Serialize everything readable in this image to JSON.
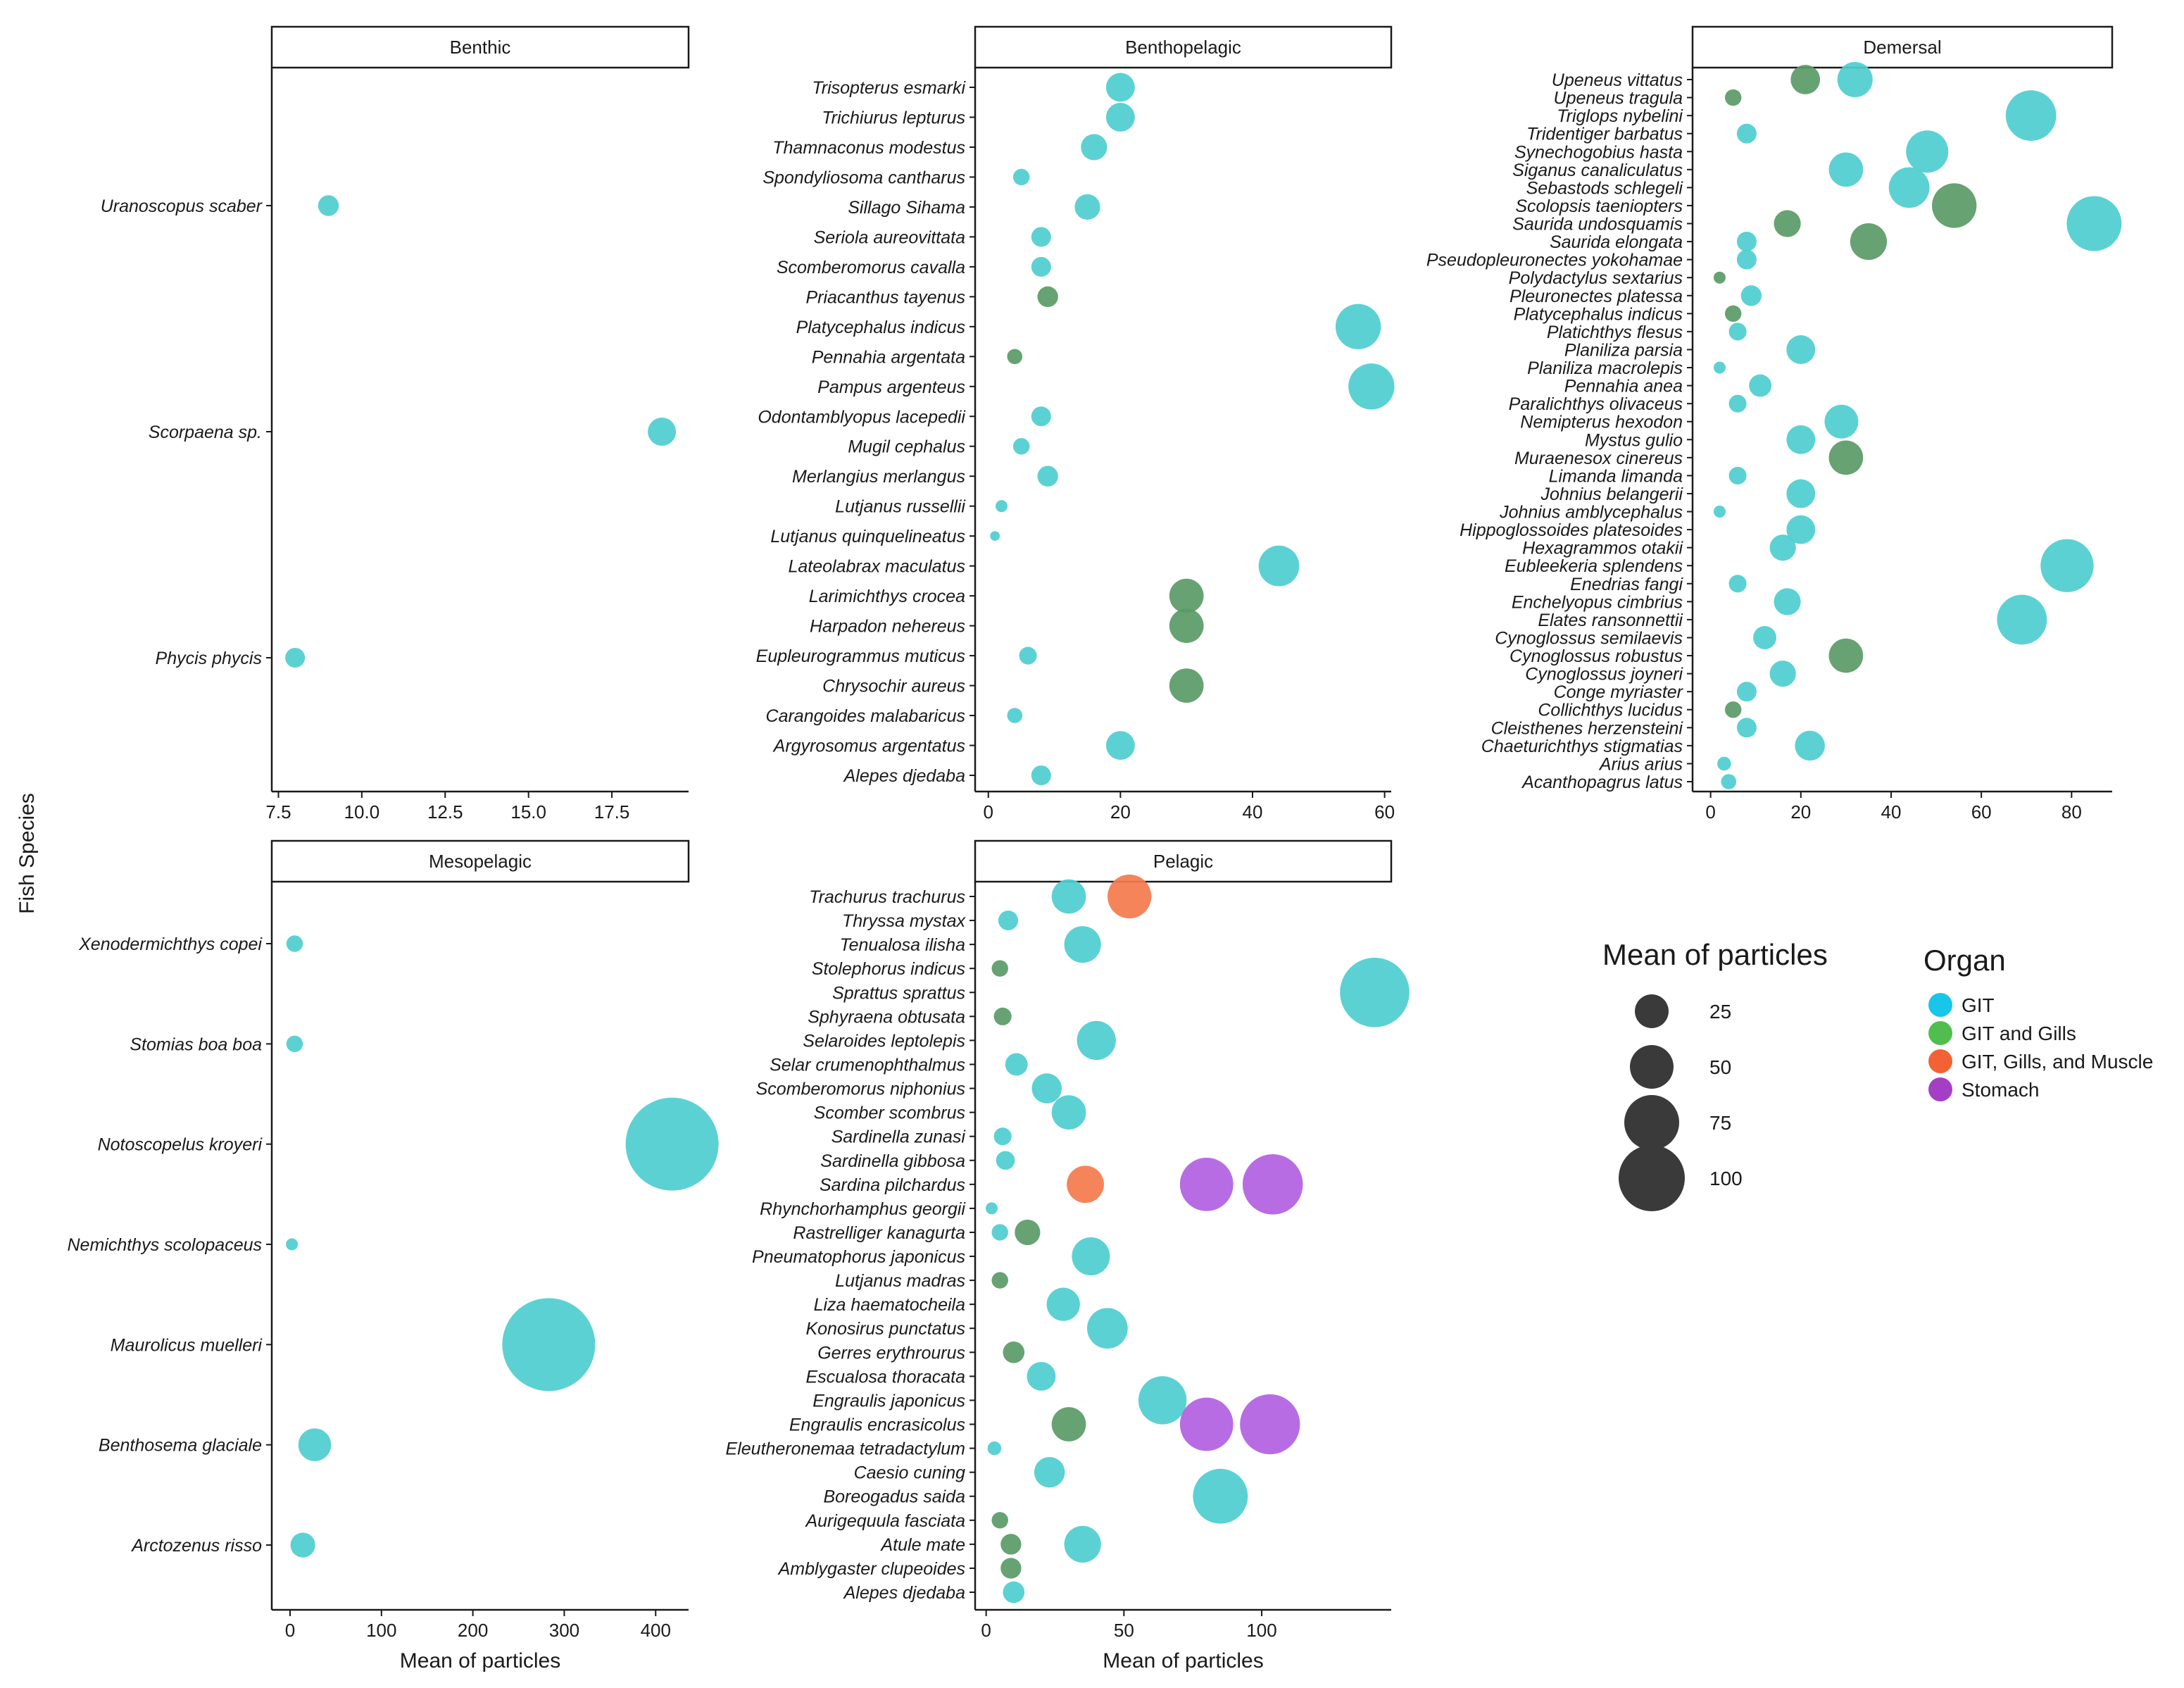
{
  "chart_data": {
    "type": "scatter",
    "y_axis_title": "Fish Species",
    "x_axis_title": "Mean of particles",
    "colors": {
      "GIT": "#4ECDCF",
      "GIT and Gills": "#5A9A66",
      "GIT, Gills, and Muscle": "#F47A4C",
      "Stomach": "#B15FE2"
    },
    "legend_colors": {
      "GIT": "#17C6E8",
      "GIT and Gills": "#4FBE4E",
      "GIT, Gills, and Muscle": "#F26234",
      "Stomach": "#A43FC5"
    },
    "size_legend": {
      "title": "Mean of particles",
      "values": [
        25,
        50,
        75,
        100
      ]
    },
    "color_legend": {
      "title": "Organ",
      "entries": [
        "GIT",
        "GIT and Gills",
        "GIT, Gills, and Muscle",
        "Stomach"
      ]
    },
    "facets": [
      {
        "title": "Benthic",
        "xlim": [
          7.3,
          19.8
        ],
        "xticks": [
          7.5,
          10.0,
          12.5,
          15.0,
          17.5
        ],
        "xtick_labels": [
          "7.5",
          "10.0",
          "12.5",
          "15.0",
          "17.5"
        ],
        "show_xlabel": false,
        "species": [
          "Uranoscopus scaber",
          "Scorpaena sp.",
          "Phycis phycis"
        ],
        "points": [
          {
            "species": "Uranoscopus scaber",
            "x": 9,
            "organ": "GIT"
          },
          {
            "species": "Scorpaena sp.",
            "x": 19,
            "organ": "GIT"
          },
          {
            "species": "Phycis phycis",
            "x": 8,
            "organ": "GIT"
          }
        ]
      },
      {
        "title": "Benthopelagic",
        "xlim": [
          -2,
          61
        ],
        "xticks": [
          0,
          20,
          40,
          60
        ],
        "xtick_labels": [
          "0",
          "20",
          "40",
          "60"
        ],
        "show_xlabel": false,
        "species": [
          "Trisopterus esmarki",
          "Trichiurus lepturus",
          "Thamnaconus modestus",
          "Spondyliosoma cantharus",
          "Sillago Sihama",
          "Seriola aureovittata",
          "Scomberomorus cavalla",
          "Priacanthus tayenus",
          "Platycephalus indicus",
          "Pennahia argentata",
          "Pampus argenteus",
          "Odontamblyopus lacepedii",
          "Mugil cephalus",
          "Merlangius merlangus",
          "Lutjanus russellii",
          "Lutjanus quinquelineatus",
          "Lateolabrax maculatus",
          "Larimichthys crocea",
          "Harpadon nehereus",
          "Eupleurogrammus muticus",
          "Chrysochir aureus",
          "Carangoides malabaricus",
          "Argyrosomus argentatus",
          "Alepes djedaba"
        ],
        "points": [
          {
            "species": "Trisopterus esmarki",
            "x": 20,
            "organ": "GIT"
          },
          {
            "species": "Trichiurus lepturus",
            "x": 20,
            "organ": "GIT"
          },
          {
            "species": "Thamnaconus modestus",
            "x": 16,
            "organ": "GIT"
          },
          {
            "species": "Spondyliosoma cantharus",
            "x": 5,
            "organ": "GIT"
          },
          {
            "species": "Sillago Sihama",
            "x": 15,
            "organ": "GIT"
          },
          {
            "species": "Seriola aureovittata",
            "x": 8,
            "organ": "GIT"
          },
          {
            "species": "Scomberomorus cavalla",
            "x": 8,
            "organ": "GIT"
          },
          {
            "species": "Priacanthus tayenus",
            "x": 9,
            "organ": "GIT and Gills"
          },
          {
            "species": "Platycephalus indicus",
            "x": 56,
            "organ": "GIT"
          },
          {
            "species": "Pennahia argentata",
            "x": 4,
            "organ": "GIT and Gills"
          },
          {
            "species": "Pampus argenteus",
            "x": 58,
            "organ": "GIT"
          },
          {
            "species": "Odontamblyopus lacepedii",
            "x": 8,
            "organ": "GIT"
          },
          {
            "species": "Mugil cephalus",
            "x": 5,
            "organ": "GIT"
          },
          {
            "species": "Merlangius merlangus",
            "x": 9,
            "organ": "GIT"
          },
          {
            "species": "Lutjanus russellii",
            "x": 2,
            "organ": "GIT"
          },
          {
            "species": "Lutjanus quinquelineatus",
            "x": 1,
            "organ": "GIT"
          },
          {
            "species": "Lateolabrax maculatus",
            "x": 44,
            "organ": "GIT"
          },
          {
            "species": "Larimichthys crocea",
            "x": 30,
            "organ": "GIT and Gills"
          },
          {
            "species": "Harpadon nehereus",
            "x": 30,
            "organ": "GIT and Gills"
          },
          {
            "species": "Eupleurogrammus muticus",
            "x": 6,
            "organ": "GIT"
          },
          {
            "species": "Chrysochir aureus",
            "x": 30,
            "organ": "GIT and Gills"
          },
          {
            "species": "Carangoides malabaricus",
            "x": 4,
            "organ": "GIT"
          },
          {
            "species": "Argyrosomus argentatus",
            "x": 20,
            "organ": "GIT"
          },
          {
            "species": "Alepes djedaba",
            "x": 8,
            "organ": "GIT"
          }
        ]
      },
      {
        "title": "Demersal",
        "xlim": [
          -4,
          89
        ],
        "xticks": [
          0,
          20,
          40,
          60,
          80
        ],
        "xtick_labels": [
          "0",
          "20",
          "40",
          "60",
          "80"
        ],
        "show_xlabel": false,
        "species": [
          "Upeneus vittatus",
          "Upeneus tragula",
          "Triglops nybelini",
          "Tridentiger barbatus",
          "Synechogobius hasta",
          "Siganus canaliculatus",
          "Sebastods schlegeli",
          "Scolopsis taeniopters",
          "Saurida undosquamis",
          "Saurida elongata",
          "Pseudopleuronectes yokohamae",
          "Polydactylus sextarius",
          "Pleuronectes platessa",
          "Platycephalus indicus",
          "Platichthys flesus",
          "Planiliza parsia",
          "Planiliza macrolepis",
          "Pennahia anea",
          "Paralichthys olivaceus",
          "Nemipterus hexodon",
          "Mystus gulio",
          "Muraenesox cinereus",
          "Limanda limanda",
          "Johnius belangerii",
          "Johnius amblycephalus",
          "Hippoglossoides platesoides",
          "Hexagrammos otakii",
          "Eubleekeria splendens",
          "Enedrias fangi",
          "Enchelyopus cimbrius",
          "Elates ransonnettii",
          "Cynoglossus semilaevis",
          "Cynoglossus robustus",
          "Cynoglossus joyneri",
          "Conge myriaster",
          "Collichthys lucidus",
          "Cleisthenes herzensteini",
          "Chaeturichthys stigmatias",
          "Arius arius",
          "Acanthopagrus latus"
        ],
        "points": [
          {
            "species": "Upeneus vittatus",
            "x": 21,
            "organ": "GIT and Gills"
          },
          {
            "species": "Upeneus vittatus",
            "x": 32,
            "organ": "GIT"
          },
          {
            "species": "Upeneus tragula",
            "x": 5,
            "organ": "GIT and Gills"
          },
          {
            "species": "Triglops nybelini",
            "x": 71,
            "organ": "GIT"
          },
          {
            "species": "Tridentiger barbatus",
            "x": 8,
            "organ": "GIT"
          },
          {
            "species": "Synechogobius hasta",
            "x": 48,
            "organ": "GIT"
          },
          {
            "species": "Siganus canaliculatus",
            "x": 30,
            "organ": "GIT"
          },
          {
            "species": "Sebastods schlegeli",
            "x": 44,
            "organ": "GIT"
          },
          {
            "species": "Scolopsis taeniopters",
            "x": 54,
            "organ": "GIT and Gills"
          },
          {
            "species": "Saurida undosquamis",
            "x": 17,
            "organ": "GIT and Gills"
          },
          {
            "species": "Saurida undosquamis",
            "x": 85,
            "organ": "GIT"
          },
          {
            "species": "Saurida elongata",
            "x": 8,
            "organ": "GIT"
          },
          {
            "species": "Saurida elongata",
            "x": 35,
            "organ": "GIT and Gills"
          },
          {
            "species": "Pseudopleuronectes yokohamae",
            "x": 8,
            "organ": "GIT"
          },
          {
            "species": "Polydactylus sextarius",
            "x": 2,
            "organ": "GIT and Gills"
          },
          {
            "species": "Pleuronectes platessa",
            "x": 9,
            "organ": "GIT"
          },
          {
            "species": "Platycephalus indicus",
            "x": 5,
            "organ": "GIT and Gills"
          },
          {
            "species": "Platichthys flesus",
            "x": 6,
            "organ": "GIT"
          },
          {
            "species": "Planiliza parsia",
            "x": 20,
            "organ": "GIT"
          },
          {
            "species": "Planiliza macrolepis",
            "x": 2,
            "organ": "GIT"
          },
          {
            "species": "Pennahia anea",
            "x": 11,
            "organ": "GIT"
          },
          {
            "species": "Paralichthys olivaceus",
            "x": 6,
            "organ": "GIT"
          },
          {
            "species": "Nemipterus hexodon",
            "x": 29,
            "organ": "GIT"
          },
          {
            "species": "Mystus gulio",
            "x": 20,
            "organ": "GIT"
          },
          {
            "species": "Muraenesox cinereus",
            "x": 30,
            "organ": "GIT and Gills"
          },
          {
            "species": "Limanda limanda",
            "x": 6,
            "organ": "GIT"
          },
          {
            "species": "Johnius belangerii",
            "x": 20,
            "organ": "GIT"
          },
          {
            "species": "Johnius amblycephalus",
            "x": 2,
            "organ": "GIT"
          },
          {
            "species": "Hippoglossoides platesoides",
            "x": 20,
            "organ": "GIT"
          },
          {
            "species": "Hexagrammos otakii",
            "x": 16,
            "organ": "GIT"
          },
          {
            "species": "Eubleekeria splendens",
            "x": 79,
            "organ": "GIT"
          },
          {
            "species": "Enedrias fangi",
            "x": 6,
            "organ": "GIT"
          },
          {
            "species": "Enchelyopus cimbrius",
            "x": 17,
            "organ": "GIT"
          },
          {
            "species": "Elates ransonnettii",
            "x": 69,
            "organ": "GIT"
          },
          {
            "species": "Cynoglossus semilaevis",
            "x": 12,
            "organ": "GIT"
          },
          {
            "species": "Cynoglossus robustus",
            "x": 30,
            "organ": "GIT and Gills"
          },
          {
            "species": "Cynoglossus joyneri",
            "x": 16,
            "organ": "GIT"
          },
          {
            "species": "Conge myriaster",
            "x": 8,
            "organ": "GIT"
          },
          {
            "species": "Collichthys lucidus",
            "x": 5,
            "organ": "GIT and Gills"
          },
          {
            "species": "Cleisthenes herzensteini",
            "x": 8,
            "organ": "GIT"
          },
          {
            "species": "Chaeturichthys stigmatias",
            "x": 22,
            "organ": "GIT"
          },
          {
            "species": "Arius arius",
            "x": 3,
            "organ": "GIT"
          },
          {
            "species": "Acanthopagrus latus",
            "x": 4,
            "organ": "GIT"
          }
        ]
      },
      {
        "title": "Mesopelagic",
        "xlim": [
          -20,
          436
        ],
        "xticks": [
          0,
          100,
          200,
          300,
          400
        ],
        "xtick_labels": [
          "0",
          "100",
          "200",
          "300",
          "400"
        ],
        "show_xlabel": true,
        "species": [
          "Xenodermichthys copei",
          "Stomias boa boa",
          "Notoscopelus kroyeri",
          "Nemichthys scolopaceus",
          "Maurolicus muelleri",
          "Benthosema glaciale",
          "Arctozenus risso"
        ],
        "points": [
          {
            "species": "Xenodermichthys copei",
            "x": 5,
            "organ": "GIT"
          },
          {
            "species": "Stomias boa boa",
            "x": 5,
            "organ": "GIT"
          },
          {
            "species": "Notoscopelus kroyeri",
            "x": 418,
            "organ": "GIT"
          },
          {
            "species": "Nemichthys scolopaceus",
            "x": 2,
            "organ": "GIT"
          },
          {
            "species": "Maurolicus muelleri",
            "x": 283,
            "organ": "GIT"
          },
          {
            "species": "Benthosema glaciale",
            "x": 27,
            "organ": "GIT"
          },
          {
            "species": "Arctozenus risso",
            "x": 14,
            "organ": "GIT"
          }
        ]
      },
      {
        "title": "Pelagic",
        "xlim": [
          -4,
          147
        ],
        "xticks": [
          0,
          50,
          100
        ],
        "xtick_labels": [
          "0",
          "50",
          "100"
        ],
        "show_xlabel": true,
        "species": [
          "Trachurus trachurus",
          "Thryssa mystax",
          "Tenualosa ilisha",
          "Stolephorus indicus",
          "Sprattus sprattus",
          "Sphyraena obtusata",
          "Selaroides leptolepis",
          "Selar crumenophthalmus",
          "Scomberomorus niphonius",
          "Scomber scombrus",
          "Sardinella zunasi",
          "Sardinella gibbosa",
          "Sardina pilchardus",
          "Rhynchorhamphus georgii",
          "Rastrelliger kanagurta",
          "Pneumatophorus japonicus",
          "Lutjanus madras",
          "Liza haematocheila",
          "Konosirus punctatus",
          "Gerres erythrourus",
          "Escualosa thoracata",
          "Engraulis japonicus",
          "Engraulis encrasicolus",
          "Eleutheronemaa tetradactylum",
          "Caesio cuning",
          "Boreogadus saida",
          "Aurigequula fasciata",
          "Atule mate",
          "Amblygaster clupeoides",
          "Alepes djedaba"
        ],
        "points": [
          {
            "species": "Trachurus trachurus",
            "x": 30,
            "organ": "GIT"
          },
          {
            "species": "Trachurus trachurus",
            "x": 52,
            "organ": "GIT, Gills, and Muscle"
          },
          {
            "species": "Thryssa mystax",
            "x": 8,
            "organ": "GIT"
          },
          {
            "species": "Tenualosa ilisha",
            "x": 35,
            "organ": "GIT"
          },
          {
            "species": "Stolephorus indicus",
            "x": 5,
            "organ": "GIT and Gills"
          },
          {
            "species": "Sprattus sprattus",
            "x": 141,
            "organ": "GIT"
          },
          {
            "species": "Sphyraena obtusata",
            "x": 6,
            "organ": "GIT and Gills"
          },
          {
            "species": "Selaroides leptolepis",
            "x": 40,
            "organ": "GIT"
          },
          {
            "species": "Selar crumenophthalmus",
            "x": 11,
            "organ": "GIT"
          },
          {
            "species": "Scomberomorus niphonius",
            "x": 22,
            "organ": "GIT"
          },
          {
            "species": "Scomber scombrus",
            "x": 30,
            "organ": "GIT"
          },
          {
            "species": "Sardinella zunasi",
            "x": 6,
            "organ": "GIT"
          },
          {
            "species": "Sardinella gibbosa",
            "x": 7,
            "organ": "GIT"
          },
          {
            "species": "Sardina pilchardus",
            "x": 36,
            "organ": "GIT, Gills, and Muscle"
          },
          {
            "species": "Sardina pilchardus",
            "x": 80,
            "organ": "Stomach"
          },
          {
            "species": "Sardina pilchardus",
            "x": 104,
            "organ": "Stomach"
          },
          {
            "species": "Rhynchorhamphus georgii",
            "x": 2,
            "organ": "GIT"
          },
          {
            "species": "Rastrelliger kanagurta",
            "x": 5,
            "organ": "GIT"
          },
          {
            "species": "Rastrelliger kanagurta",
            "x": 15,
            "organ": "GIT and Gills"
          },
          {
            "species": "Pneumatophorus japonicus",
            "x": 38,
            "organ": "GIT"
          },
          {
            "species": "Lutjanus madras",
            "x": 5,
            "organ": "GIT and Gills"
          },
          {
            "species": "Liza haematocheila",
            "x": 28,
            "organ": "GIT"
          },
          {
            "species": "Konosirus punctatus",
            "x": 44,
            "organ": "GIT"
          },
          {
            "species": "Gerres erythrourus",
            "x": 10,
            "organ": "GIT and Gills"
          },
          {
            "species": "Escualosa thoracata",
            "x": 20,
            "organ": "GIT"
          },
          {
            "species": "Engraulis japonicus",
            "x": 64,
            "organ": "GIT"
          },
          {
            "species": "Engraulis encrasicolus",
            "x": 30,
            "organ": "GIT and Gills"
          },
          {
            "species": "Engraulis encrasicolus",
            "x": 80,
            "organ": "Stomach"
          },
          {
            "species": "Engraulis encrasicolus",
            "x": 103,
            "organ": "Stomach"
          },
          {
            "species": "Eleutheronemaa tetradactylum",
            "x": 3,
            "organ": "GIT"
          },
          {
            "species": "Caesio cuning",
            "x": 23,
            "organ": "GIT"
          },
          {
            "species": "Boreogadus saida",
            "x": 85,
            "organ": "GIT"
          },
          {
            "species": "Aurigequula fasciata",
            "x": 5,
            "organ": "GIT and Gills"
          },
          {
            "species": "Atule mate",
            "x": 9,
            "organ": "GIT and Gills"
          },
          {
            "species": "Atule mate",
            "x": 35,
            "organ": "GIT"
          },
          {
            "species": "Amblygaster clupeoides",
            "x": 9,
            "organ": "GIT and Gills"
          },
          {
            "species": "Alepes djedaba",
            "x": 10,
            "organ": "GIT"
          }
        ]
      }
    ]
  }
}
